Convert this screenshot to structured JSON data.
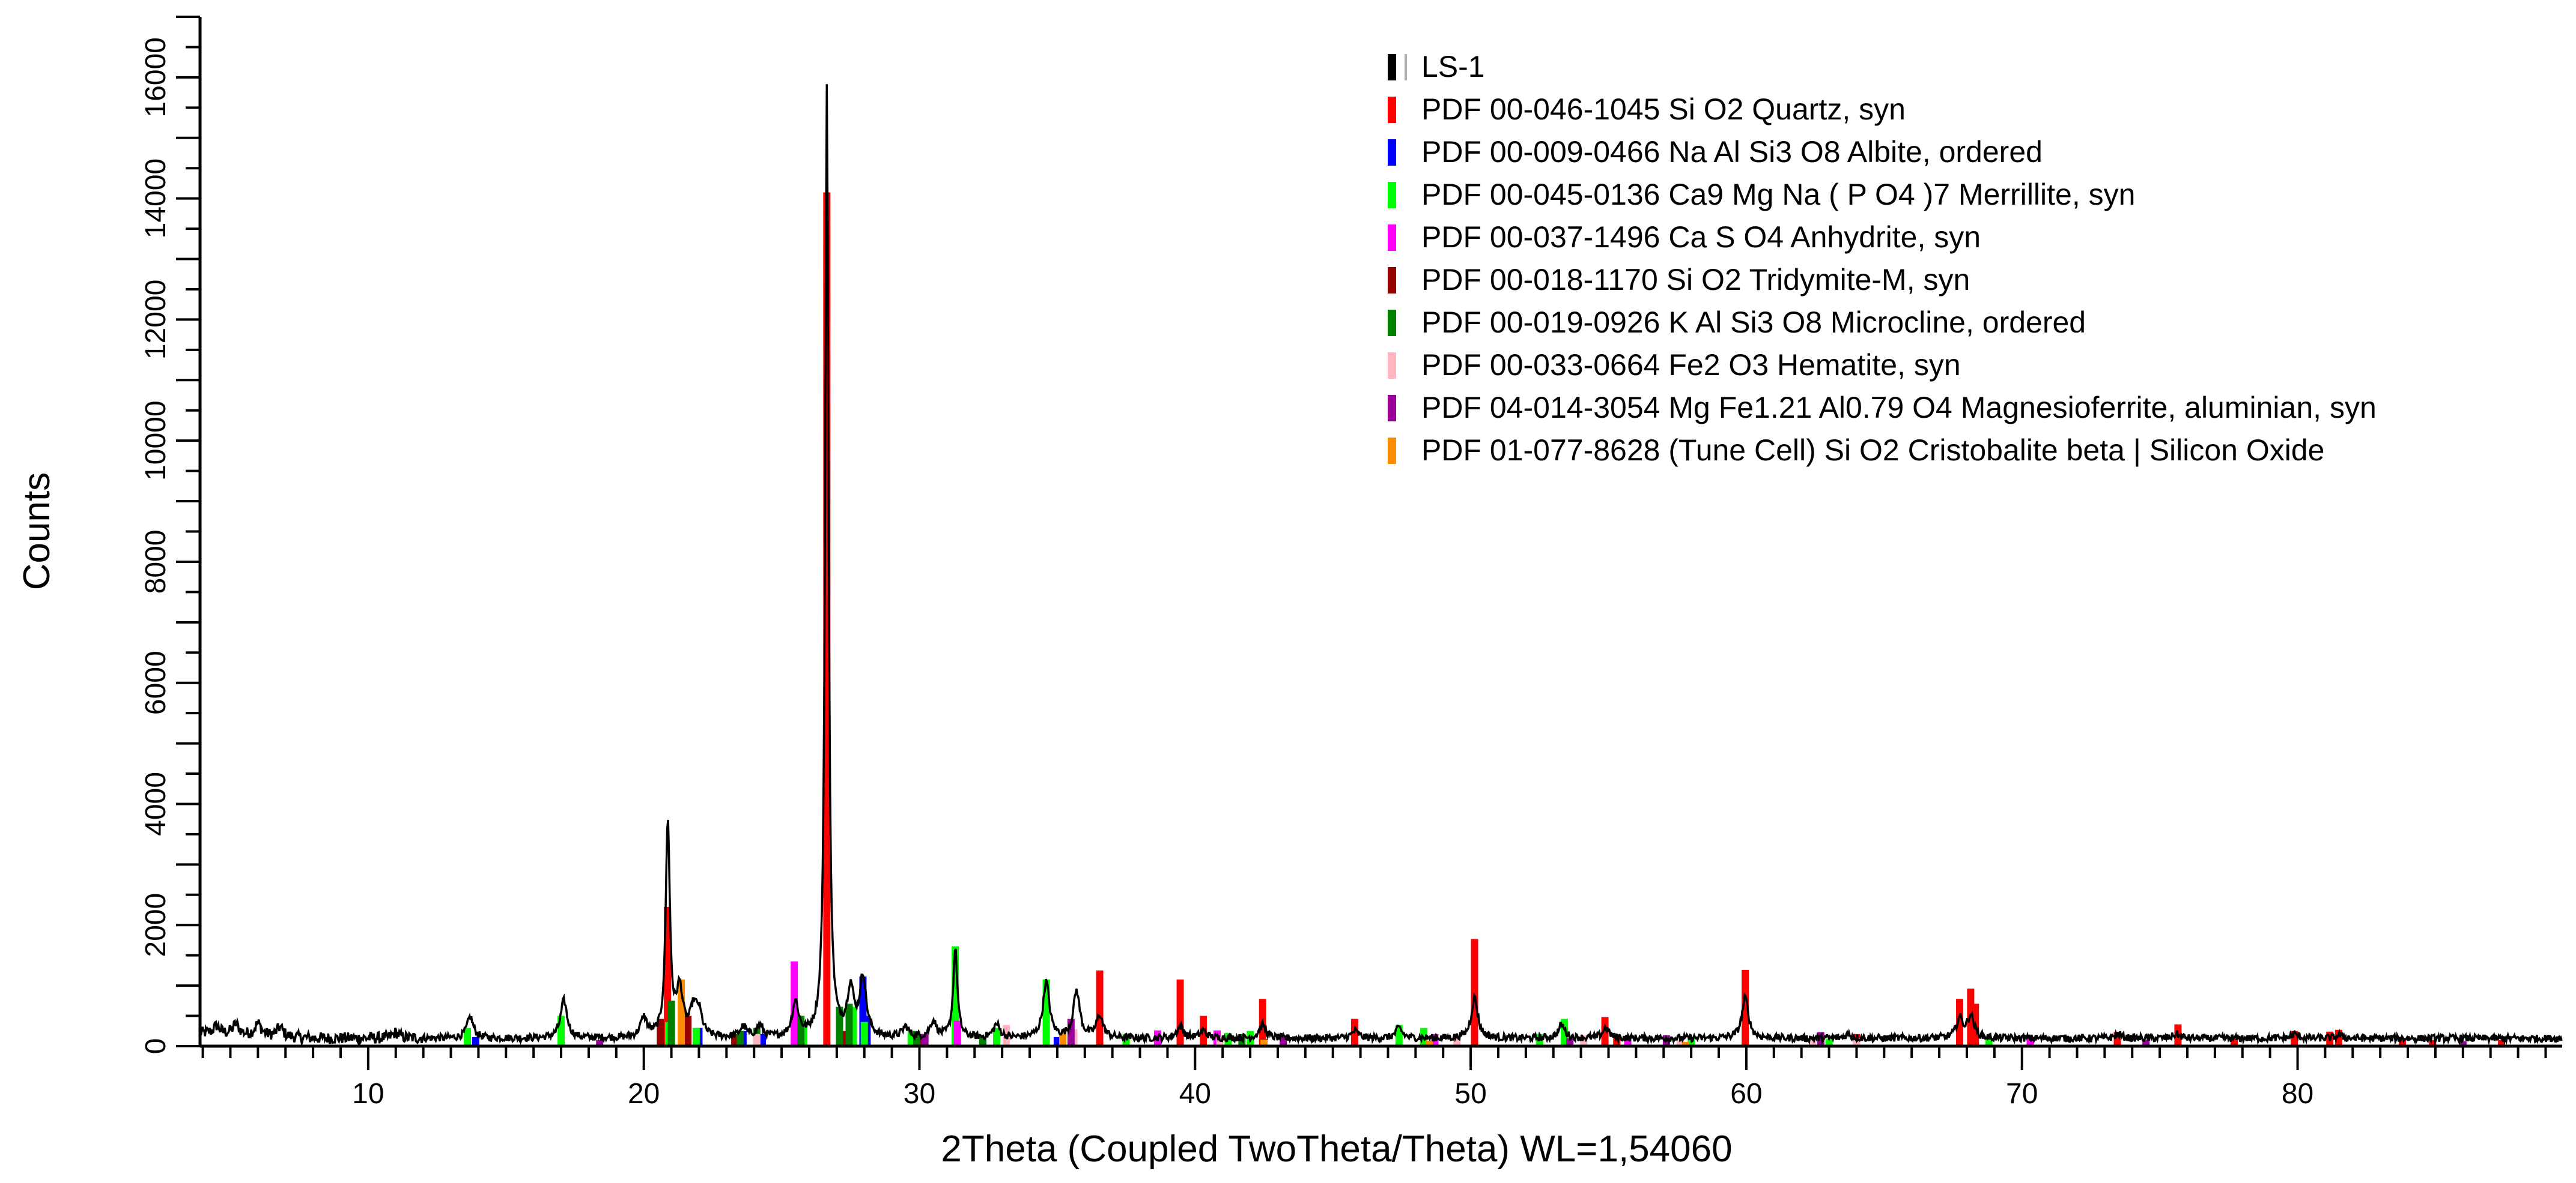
{
  "chart_data": {
    "type": "line",
    "title": "",
    "xlabel": "2Theta (Coupled TwoTheta/Theta) WL=1,54060",
    "ylabel": "Counts",
    "xlim": [
      3.9,
      89.6
    ],
    "ylim": [
      0,
      17000
    ],
    "x_ticks": [
      10,
      20,
      30,
      40,
      50,
      60,
      70,
      80
    ],
    "y_ticks": [
      0,
      2000,
      4000,
      6000,
      8000,
      10000,
      12000,
      14000,
      16000
    ],
    "grid": false,
    "legend_position": "top-right",
    "legend": [
      {
        "label": "LS-1",
        "color": "#000000"
      },
      {
        "label": "PDF 00-046-1045 Si O2 Quartz, syn",
        "color": "#ff0000"
      },
      {
        "label": "PDF 00-009-0466 Na Al Si3 O8 Albite, ordered",
        "color": "#0000ff"
      },
      {
        "label": "PDF 00-045-0136 Ca9 Mg Na ( P O4 )7 Merrillite, syn",
        "color": "#00ff00"
      },
      {
        "label": "PDF 00-037-1496 Ca S O4 Anhydrite, syn",
        "color": "#ff00ff"
      },
      {
        "label": "PDF 00-018-1170 Si O2 Tridymite-M, syn",
        "color": "#990000"
      },
      {
        "label": "PDF 00-019-0926 K Al Si3 O8 Microcline, ordered",
        "color": "#008000"
      },
      {
        "label": "PDF 00-033-0664 Fe2 O3 Hematite, syn",
        "color": "#ffb6c1"
      },
      {
        "label": "PDF 04-014-3054 Mg Fe1.21 Al0.79 O4 Magnesioferrite, aluminian, syn",
        "color": "#990099"
      },
      {
        "label": "PDF 01-077-8628 (Tune Cell) Si O2 Cristobalite beta | Silicon Oxide",
        "color": "#ff8c00"
      }
    ],
    "series": [
      {
        "name": "LS-1",
        "color": "#000000",
        "baseline": 130,
        "peaks": [
          {
            "x": 4.5,
            "y": 260
          },
          {
            "x": 5.2,
            "y": 300
          },
          {
            "x": 6.0,
            "y": 330
          },
          {
            "x": 6.8,
            "y": 280
          },
          {
            "x": 11.0,
            "y": 220
          },
          {
            "x": 13.7,
            "y": 480
          },
          {
            "x": 17.1,
            "y": 750
          },
          {
            "x": 20.0,
            "y": 450
          },
          {
            "x": 20.87,
            "y": 3700
          },
          {
            "x": 21.3,
            "y": 900
          },
          {
            "x": 21.8,
            "y": 550
          },
          {
            "x": 22.0,
            "y": 500
          },
          {
            "x": 23.6,
            "y": 300
          },
          {
            "x": 24.2,
            "y": 320
          },
          {
            "x": 25.5,
            "y": 700
          },
          {
            "x": 26.64,
            "y": 15900
          },
          {
            "x": 27.5,
            "y": 900
          },
          {
            "x": 27.95,
            "y": 1100
          },
          {
            "x": 29.5,
            "y": 300
          },
          {
            "x": 30.5,
            "y": 400
          },
          {
            "x": 31.3,
            "y": 1600
          },
          {
            "x": 32.8,
            "y": 350
          },
          {
            "x": 34.6,
            "y": 1050
          },
          {
            "x": 35.7,
            "y": 900
          },
          {
            "x": 36.54,
            "y": 500
          },
          {
            "x": 39.46,
            "y": 320
          },
          {
            "x": 40.3,
            "y": 250
          },
          {
            "x": 42.45,
            "y": 350
          },
          {
            "x": 45.8,
            "y": 250
          },
          {
            "x": 47.4,
            "y": 300
          },
          {
            "x": 50.14,
            "y": 800
          },
          {
            "x": 53.3,
            "y": 350
          },
          {
            "x": 54.9,
            "y": 300
          },
          {
            "x": 59.96,
            "y": 800
          },
          {
            "x": 63.7,
            "y": 200
          },
          {
            "x": 67.74,
            "y": 450
          },
          {
            "x": 68.14,
            "y": 500
          },
          {
            "x": 73.5,
            "y": 200
          },
          {
            "x": 75.6,
            "y": 200
          },
          {
            "x": 79.9,
            "y": 200
          },
          {
            "x": 81.5,
            "y": 180
          }
        ]
      }
    ],
    "reference_markers": [
      {
        "phase": "PDF 00-046-1045 Si O2 Quartz, syn",
        "color": "#ff0000",
        "positions": [
          {
            "x": 20.86,
            "y": 2300
          },
          {
            "x": 26.64,
            "y": 14100
          },
          {
            "x": 36.54,
            "y": 1250
          },
          {
            "x": 39.46,
            "y": 1100
          },
          {
            "x": 40.3,
            "y": 500
          },
          {
            "x": 42.45,
            "y": 780
          },
          {
            "x": 45.79,
            "y": 450
          },
          {
            "x": 50.14,
            "y": 1770
          },
          {
            "x": 54.87,
            "y": 480
          },
          {
            "x": 55.3,
            "y": 200
          },
          {
            "x": 59.96,
            "y": 1260
          },
          {
            "x": 64.0,
            "y": 200
          },
          {
            "x": 67.74,
            "y": 780
          },
          {
            "x": 68.14,
            "y": 950
          },
          {
            "x": 68.31,
            "y": 700
          },
          {
            "x": 73.46,
            "y": 230
          },
          {
            "x": 75.66,
            "y": 360
          },
          {
            "x": 77.7,
            "y": 120
          },
          {
            "x": 79.88,
            "y": 250
          },
          {
            "x": 81.17,
            "y": 240
          },
          {
            "x": 81.49,
            "y": 270
          },
          {
            "x": 83.8,
            "y": 100
          },
          {
            "x": 84.9,
            "y": 100
          },
          {
            "x": 87.4,
            "y": 100
          }
        ]
      },
      {
        "phase": "PDF 00-009-0466 Na Al Si3 O8 Albite, ordered",
        "color": "#0000ff",
        "positions": [
          {
            "x": 13.9,
            "y": 150
          },
          {
            "x": 22.0,
            "y": 300
          },
          {
            "x": 23.6,
            "y": 250
          },
          {
            "x": 24.3,
            "y": 200
          },
          {
            "x": 27.95,
            "y": 1150
          },
          {
            "x": 28.1,
            "y": 500
          },
          {
            "x": 30.1,
            "y": 200
          },
          {
            "x": 35.0,
            "y": 150
          },
          {
            "x": 42.5,
            "y": 120
          }
        ]
      },
      {
        "phase": "PDF 00-045-0136 Ca9 Mg Na ( P O4 )7 Merrillite, syn",
        "color": "#00ff00",
        "positions": [
          {
            "x": 13.6,
            "y": 300
          },
          {
            "x": 17.0,
            "y": 500
          },
          {
            "x": 20.9,
            "y": 400
          },
          {
            "x": 21.9,
            "y": 300
          },
          {
            "x": 25.8,
            "y": 350
          },
          {
            "x": 27.6,
            "y": 650
          },
          {
            "x": 28.0,
            "y": 400
          },
          {
            "x": 29.7,
            "y": 250
          },
          {
            "x": 31.3,
            "y": 1650
          },
          {
            "x": 32.8,
            "y": 300
          },
          {
            "x": 34.6,
            "y": 1100
          },
          {
            "x": 37.5,
            "y": 200
          },
          {
            "x": 41.2,
            "y": 220
          },
          {
            "x": 42.0,
            "y": 250
          },
          {
            "x": 47.4,
            "y": 350
          },
          {
            "x": 48.3,
            "y": 300
          },
          {
            "x": 52.5,
            "y": 200
          },
          {
            "x": 53.4,
            "y": 450
          },
          {
            "x": 58.0,
            "y": 150
          },
          {
            "x": 63.0,
            "y": 120
          },
          {
            "x": 68.8,
            "y": 120
          }
        ]
      },
      {
        "phase": "PDF 00-037-1496 Ca S O4 Anhydrite, syn",
        "color": "#ff00ff",
        "positions": [
          {
            "x": 25.46,
            "y": 1400
          },
          {
            "x": 31.38,
            "y": 420
          },
          {
            "x": 38.64,
            "y": 260
          },
          {
            "x": 40.8,
            "y": 260
          },
          {
            "x": 48.7,
            "y": 200
          },
          {
            "x": 55.7,
            "y": 170
          },
          {
            "x": 62.7,
            "y": 150
          },
          {
            "x": 70.3,
            "y": 130
          }
        ]
      },
      {
        "phase": "PDF 00-018-1170 Si O2 Tridymite-M, syn",
        "color": "#990000",
        "positions": [
          {
            "x": 20.6,
            "y": 450
          },
          {
            "x": 21.6,
            "y": 500
          },
          {
            "x": 23.3,
            "y": 200
          },
          {
            "x": 27.3,
            "y": 250
          },
          {
            "x": 30.0,
            "y": 200
          },
          {
            "x": 35.6,
            "y": 200
          }
        ]
      },
      {
        "phase": "PDF 00-019-0926 K Al Si3 O8 Microcline, ordered",
        "color": "#008000",
        "positions": [
          {
            "x": 21.0,
            "y": 750
          },
          {
            "x": 23.5,
            "y": 250
          },
          {
            "x": 24.1,
            "y": 300
          },
          {
            "x": 25.7,
            "y": 500
          },
          {
            "x": 27.1,
            "y": 650
          },
          {
            "x": 27.45,
            "y": 700
          },
          {
            "x": 29.9,
            "y": 250
          },
          {
            "x": 32.3,
            "y": 150
          },
          {
            "x": 41.7,
            "y": 200
          }
        ]
      },
      {
        "phase": "PDF 00-033-0664 Fe2 O3 Hematite, syn",
        "color": "#ffb6c1",
        "positions": [
          {
            "x": 24.1,
            "y": 200
          },
          {
            "x": 33.15,
            "y": 350
          },
          {
            "x": 35.6,
            "y": 280
          },
          {
            "x": 40.9,
            "y": 150
          },
          {
            "x": 49.5,
            "y": 150
          },
          {
            "x": 54.1,
            "y": 180
          },
          {
            "x": 57.6,
            "y": 100
          },
          {
            "x": 62.4,
            "y": 130
          },
          {
            "x": 64.0,
            "y": 130
          }
        ]
      },
      {
        "phase": "PDF 04-014-3054 Mg Fe1.21 Al0.79 O4 Magnesioferrite, aluminian, syn",
        "color": "#990099",
        "positions": [
          {
            "x": 18.4,
            "y": 100
          },
          {
            "x": 30.2,
            "y": 200
          },
          {
            "x": 35.5,
            "y": 450
          },
          {
            "x": 43.2,
            "y": 170
          },
          {
            "x": 53.6,
            "y": 130
          },
          {
            "x": 57.1,
            "y": 180
          },
          {
            "x": 62.7,
            "y": 230
          },
          {
            "x": 74.5,
            "y": 100
          },
          {
            "x": 86.0,
            "y": 80
          }
        ]
      },
      {
        "phase": "PDF 01-077-8628 (Tune Cell) Si O2 Cristobalite beta | Silicon Oxide",
        "color": "#ff8c00",
        "positions": [
          {
            "x": 21.36,
            "y": 1100
          },
          {
            "x": 35.2,
            "y": 230
          },
          {
            "x": 42.5,
            "y": 110
          },
          {
            "x": 48.5,
            "y": 90
          },
          {
            "x": 57.8,
            "y": 70
          }
        ]
      }
    ]
  }
}
